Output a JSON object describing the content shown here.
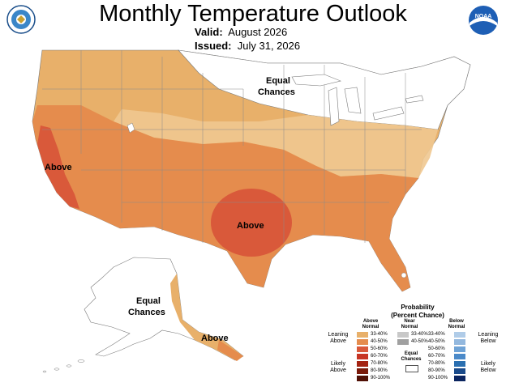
{
  "header": {
    "title": "Monthly Temperature Outlook",
    "valid_label": "Valid:",
    "valid_value": "August 2026",
    "issued_label": "Issued:",
    "issued_value": "July 31, 2026"
  },
  "logos": {
    "left": "doc-seal-icon",
    "right": "noaa-logo-icon",
    "right_text": "NOAA"
  },
  "map_labels": {
    "west_coast": "Above",
    "south_central": "Above",
    "north_central_line1": "Equal",
    "north_central_line2": "Chances",
    "alaska_line1": "Equal",
    "alaska_line2": "Chances",
    "alaska_south": "Above"
  },
  "colors": {
    "ocean_bg": "#ffffff",
    "above_33_40": "#e8b06a",
    "above_40_50": "#e58c4d",
    "above_50_60": "#d9593a",
    "light_tan": "#f0c890",
    "below_33_40": "#b0cce8",
    "below_40_50": "#93b8de",
    "below_50_60": "#6fa3d6",
    "below_60_70": "#4b8ac9",
    "below_70_80": "#2a6fb0",
    "below_80_90": "#1a4a8a",
    "below_90_100": "#0b2560",
    "near_33_40": "#c8c8c8",
    "near_40_50": "#a0a0a0"
  },
  "legend": {
    "title_line1": "Probability",
    "title_line2": "(Percent Chance)",
    "above_head_line1": "Above",
    "above_head_line2": "Normal",
    "near_head_line1": "Near",
    "near_head_line2": "Normal",
    "below_head_line1": "Below",
    "below_head_line2": "Normal",
    "leaning_above_line1": "Leaning",
    "leaning_above_line2": "Above",
    "likely_above_line1": "Likely",
    "likely_above_line2": "Above",
    "leaning_below_line1": "Leaning",
    "leaning_below_line2": "Below",
    "likely_below_line1": "Likely",
    "likely_below_line2": "Below",
    "equal_line1": "Equal",
    "equal_line2": "Chances",
    "above_rows": [
      {
        "label": "33-40%",
        "color": "#e8b06a"
      },
      {
        "label": "40-50%",
        "color": "#e58c4d"
      },
      {
        "label": "50-60%",
        "color": "#d9593a"
      },
      {
        "label": "60-70%",
        "color": "#c73524"
      },
      {
        "label": "70-80%",
        "color": "#a42312"
      },
      {
        "label": "80-90%",
        "color": "#7a1a0a"
      },
      {
        "label": "90-100%",
        "color": "#501005"
      }
    ],
    "near_rows": [
      {
        "label": "33-40%",
        "color": "#c8c8c8"
      },
      {
        "label": "40-50%",
        "color": "#a0a0a0"
      }
    ],
    "below_rows": [
      {
        "label": "33-40%",
        "color": "#b0cce8"
      },
      {
        "label": "40-50%",
        "color": "#93b8de"
      },
      {
        "label": "50-60%",
        "color": "#6fa3d6"
      },
      {
        "label": "60-70%",
        "color": "#4b8ac9"
      },
      {
        "label": "70-80%",
        "color": "#2a6fb0"
      },
      {
        "label": "80-90%",
        "color": "#1a4a8a"
      },
      {
        "label": "90-100%",
        "color": "#0b2560"
      }
    ]
  }
}
